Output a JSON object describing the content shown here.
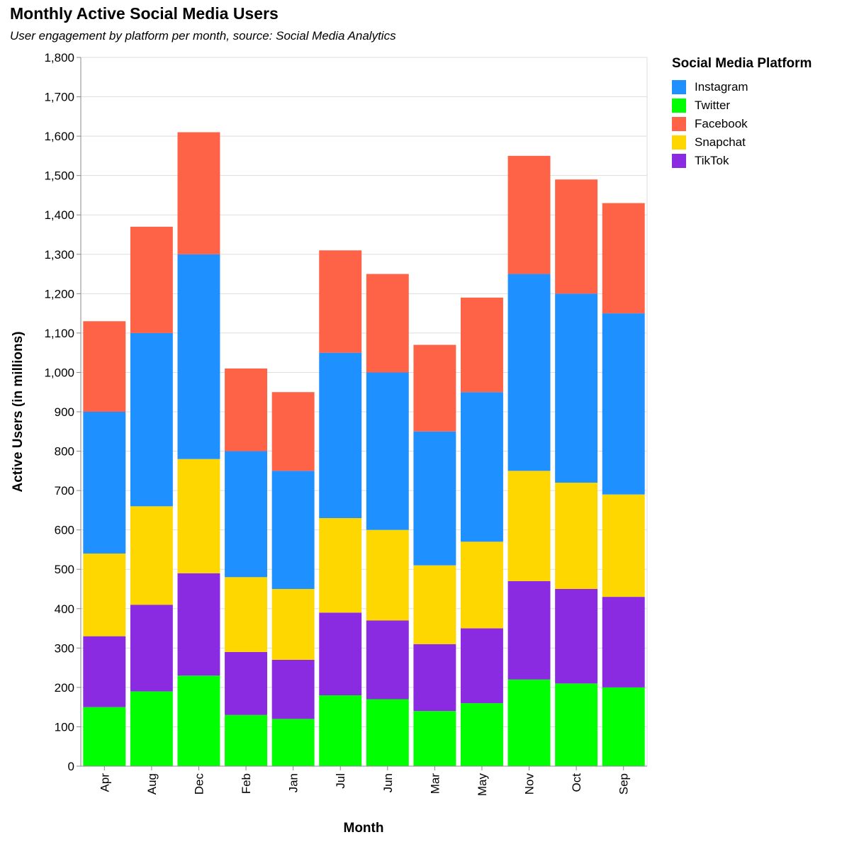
{
  "chart_data": {
    "type": "bar",
    "stacked": true,
    "title": "Monthly Active Social Media Users",
    "subtitle": "User engagement by platform per month, source: Social Media Analytics",
    "xlabel": "Month",
    "ylabel": "Active Users (in millions)",
    "ylim": [
      0,
      1800
    ],
    "yticks": [
      0,
      100,
      200,
      300,
      400,
      500,
      600,
      700,
      800,
      900,
      1000,
      1100,
      1200,
      1300,
      1400,
      1500,
      1600,
      1700,
      1800
    ],
    "ytick_labels": [
      "0",
      "100",
      "200",
      "300",
      "400",
      "500",
      "600",
      "700",
      "800",
      "900",
      "1,000",
      "1,100",
      "1,200",
      "1,300",
      "1,400",
      "1,500",
      "1,600",
      "1,700",
      "1,800"
    ],
    "grid": true,
    "categories": [
      "Apr",
      "Aug",
      "Dec",
      "Feb",
      "Jan",
      "Jul",
      "Jun",
      "Mar",
      "May",
      "Nov",
      "Oct",
      "Sep"
    ],
    "stack_order": [
      "Twitter",
      "TikTok",
      "Snapchat",
      "Instagram",
      "Facebook"
    ],
    "series": [
      {
        "name": "Instagram",
        "color": "#1e90ff",
        "values": [
          360,
          440,
          520,
          320,
          300,
          420,
          400,
          340,
          380,
          500,
          480,
          460
        ]
      },
      {
        "name": "Twitter",
        "color": "#00ff00",
        "values": [
          150,
          190,
          230,
          130,
          120,
          180,
          170,
          140,
          160,
          220,
          210,
          200
        ]
      },
      {
        "name": "Facebook",
        "color": "#ff6347",
        "values": [
          230,
          270,
          310,
          210,
          200,
          260,
          250,
          220,
          240,
          300,
          290,
          280
        ]
      },
      {
        "name": "Snapchat",
        "color": "#ffd700",
        "values": [
          210,
          250,
          290,
          190,
          180,
          240,
          230,
          200,
          220,
          280,
          270,
          260
        ]
      },
      {
        "name": "TikTok",
        "color": "#8a2be2",
        "values": [
          180,
          220,
          260,
          160,
          150,
          210,
          200,
          170,
          190,
          250,
          240,
          230
        ]
      }
    ],
    "legend": {
      "title": "Social Media Platform",
      "position": "right"
    }
  }
}
